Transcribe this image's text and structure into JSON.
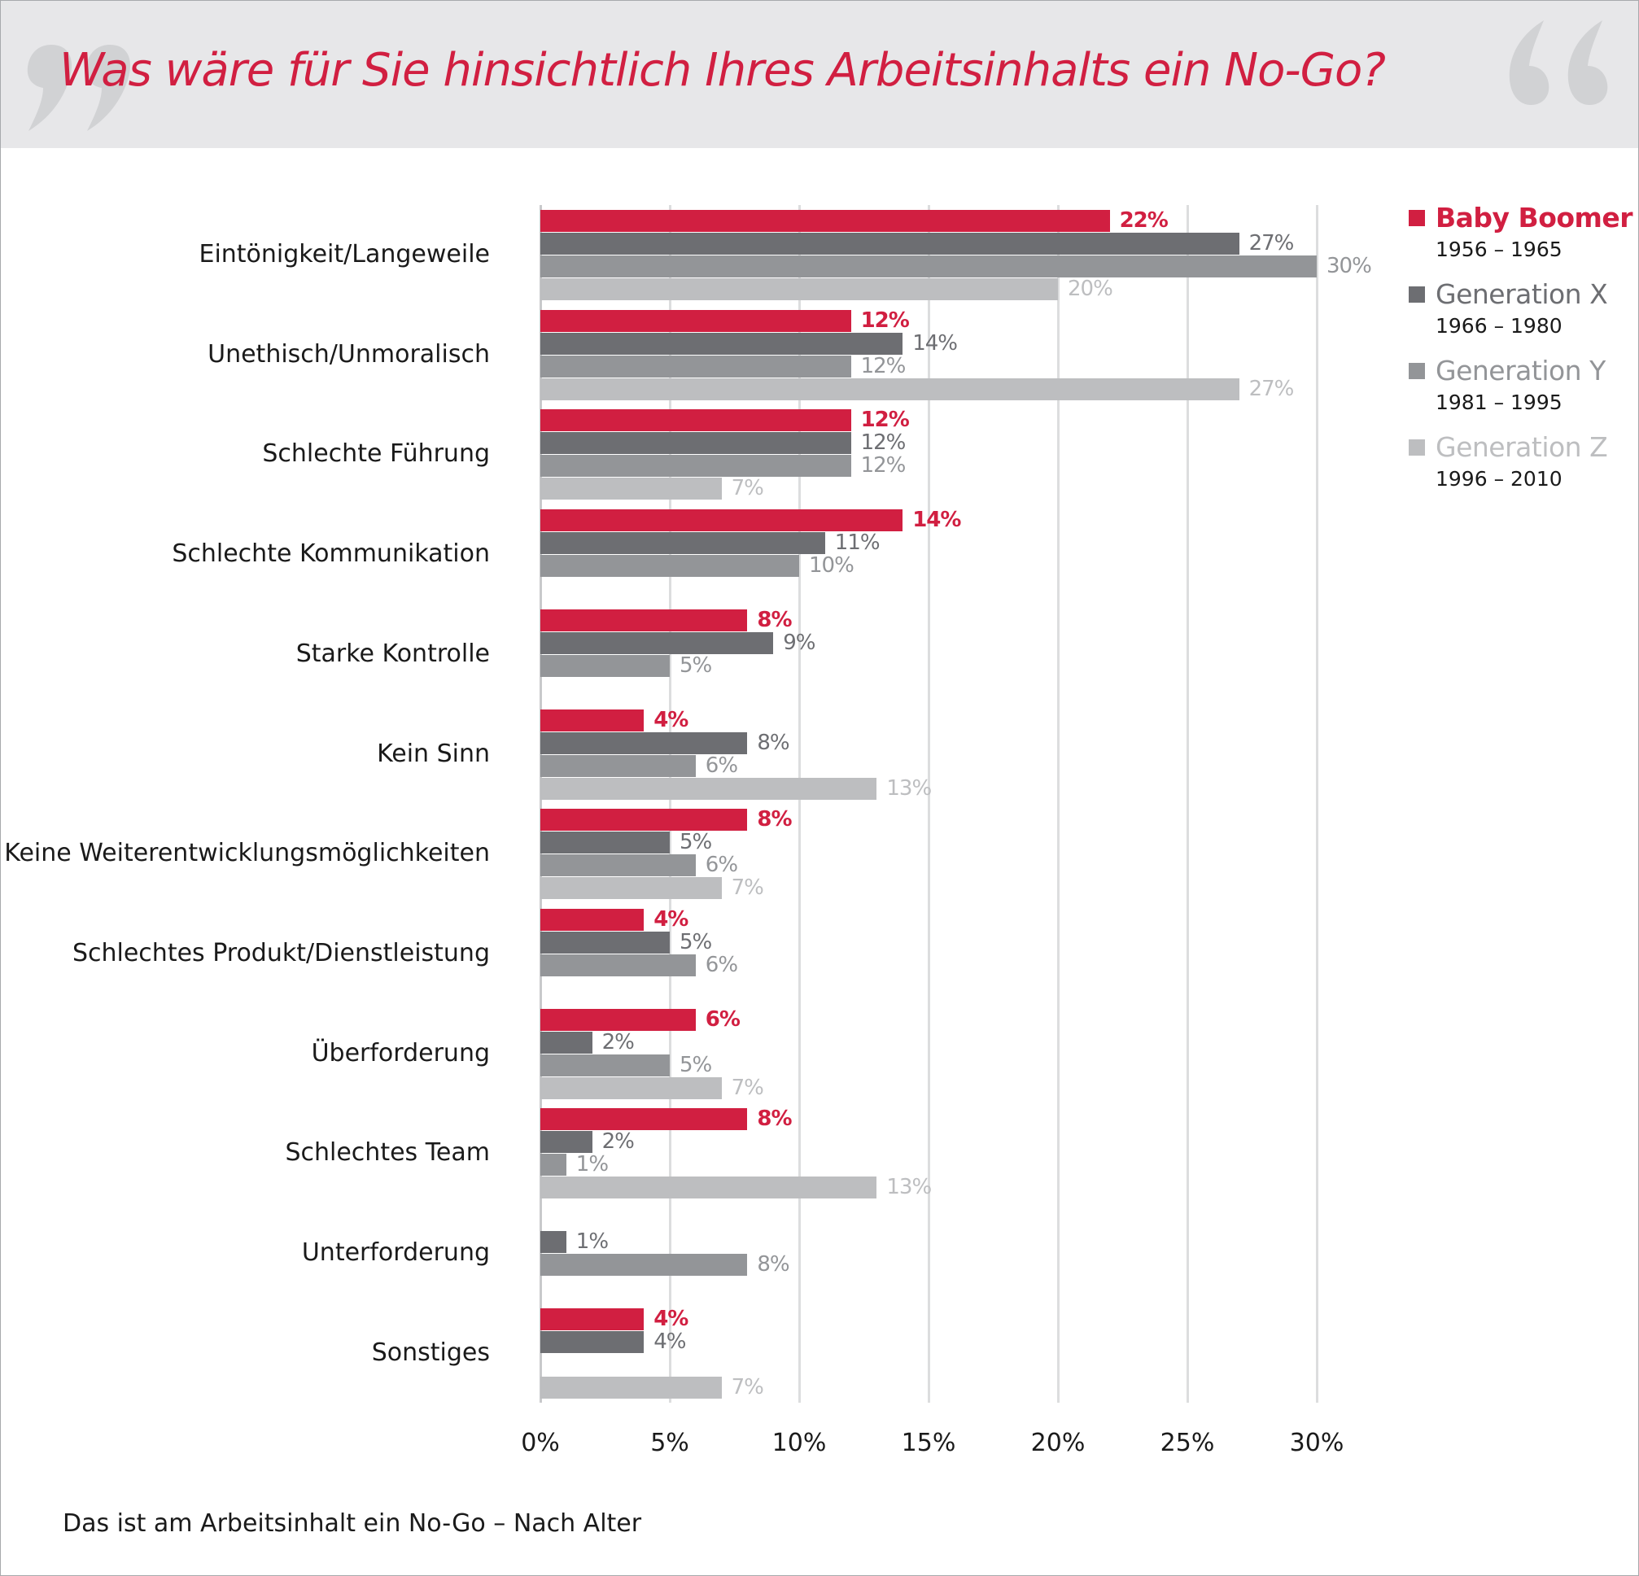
{
  "title": "Was wäre für Sie hinsichtlich Ihres Arbeitsinhalts ein No-Go?",
  "footer": "Das ist am Arbeitsinhalt ein No-Go – Nach Alter",
  "colors": {
    "accent": "#d11f41",
    "header_bg": "#e7e7e9",
    "quote_marks": "#d1d2d4"
  },
  "legend": [
    {
      "name": "Baby Boomer",
      "years": "1956 – 1965",
      "color": "#d11f41"
    },
    {
      "name": "Generation X",
      "years": "1966 – 1980",
      "color": "#6d6e72"
    },
    {
      "name": "Generation Y",
      "years": "1981 – 1995",
      "color": "#939598"
    },
    {
      "name": "Generation Z",
      "years": "1996 – 2010",
      "color": "#bdbec0"
    }
  ],
  "chart_data": {
    "type": "bar",
    "orientation": "horizontal",
    "title": "Was wäre für Sie hinsichtlich Ihres Arbeitsinhalts ein No-Go?",
    "xlabel": "",
    "ylabel": "",
    "xlim": [
      0,
      30
    ],
    "x_ticks": [
      "0%",
      "5%",
      "10%",
      "15%",
      "20%",
      "25%",
      "30%"
    ],
    "grid": true,
    "legend_position": "top-right",
    "categories": [
      "Eintönigkeit/Langeweile",
      "Unethisch/Unmoralisch",
      "Schlechte Führung",
      "Schlechte Kommunikation",
      "Starke Kontrolle",
      "Kein Sinn",
      "Keine Weiterentwicklungsmöglichkeiten",
      "Schlechtes Produkt/Dienstleistung",
      "Überforderung",
      "Schlechtes Team",
      "Unterforderung",
      "Sonstiges"
    ],
    "series": [
      {
        "name": "Baby Boomer",
        "color": "#d11f41",
        "values": [
          22,
          12,
          12,
          14,
          8,
          4,
          8,
          4,
          6,
          8,
          null,
          4
        ]
      },
      {
        "name": "Generation X",
        "color": "#6d6e72",
        "values": [
          27,
          14,
          12,
          11,
          9,
          8,
          5,
          5,
          2,
          2,
          1,
          4
        ]
      },
      {
        "name": "Generation Y",
        "color": "#939598",
        "values": [
          30,
          12,
          12,
          10,
          5,
          6,
          6,
          6,
          5,
          1,
          8,
          null
        ]
      },
      {
        "name": "Generation Z",
        "color": "#bdbec0",
        "values": [
          20,
          27,
          7,
          null,
          null,
          13,
          7,
          null,
          7,
          13,
          null,
          7
        ]
      }
    ]
  }
}
